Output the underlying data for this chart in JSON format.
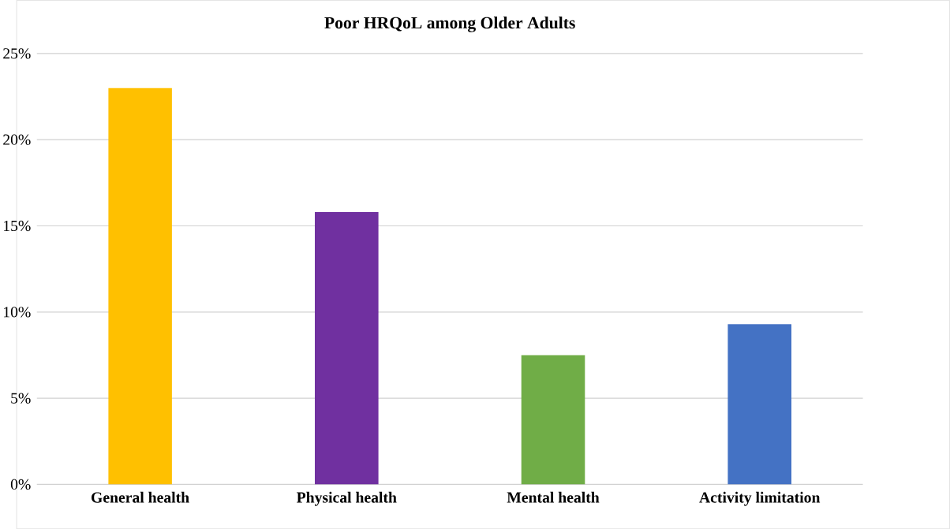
{
  "chart_data": {
    "type": "bar",
    "title": "Poor HRQoL among Older Adults",
    "categories": [
      "General health",
      "Physical health",
      "Mental health",
      "Activity limitation"
    ],
    "values": [
      23.0,
      15.8,
      7.5,
      9.3
    ],
    "colors": [
      "#ffc000",
      "#7030a0",
      "#70ad47",
      "#4472c4"
    ],
    "ylim": [
      0,
      25
    ],
    "yticks": [
      {
        "value": 0,
        "label": "0%"
      },
      {
        "value": 5,
        "label": "5%"
      },
      {
        "value": 10,
        "label": "10%"
      },
      {
        "value": 15,
        "label": "15%"
      },
      {
        "value": 20,
        "label": "20%"
      },
      {
        "value": 25,
        "label": "25%"
      }
    ],
    "grid": "y"
  }
}
